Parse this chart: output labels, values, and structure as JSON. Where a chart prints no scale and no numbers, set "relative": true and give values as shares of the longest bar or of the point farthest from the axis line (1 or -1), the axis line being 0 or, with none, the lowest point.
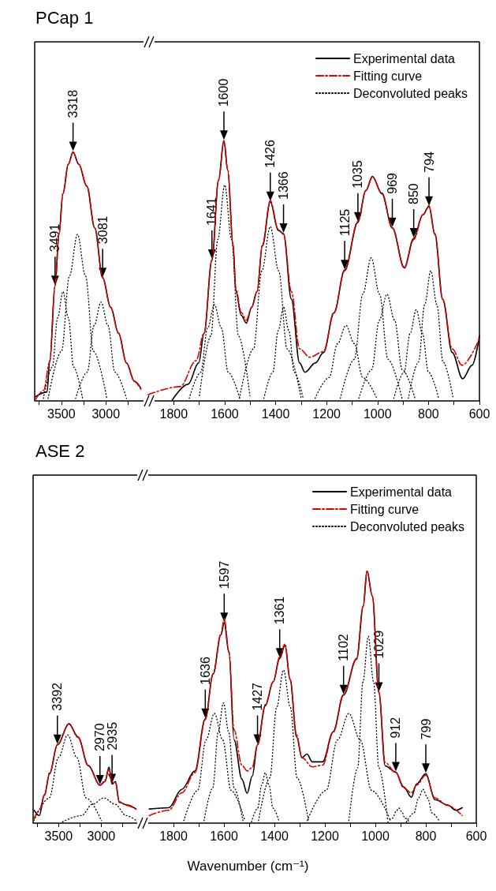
{
  "chart_data": [
    {
      "type": "line",
      "title": "PCap 1",
      "relative": true,
      "xlim": [
        3800,
        2550
      ],
      "xticks": [
        {
          "value": 3750,
          "label": null
        },
        3500,
        {
          "value": 3250,
          "label": null
        },
        3000,
        {
          "value": 2750,
          "label": null
        }
      ],
      "series": [
        {
          "color": "#000000",
          "line_style": "solid",
          "x": [
            3795,
            3661,
            3631,
            3571,
            3527,
            3482,
            3422,
            3369,
            3304,
            3214,
            3125,
            3036,
            2946,
            2857,
            2768,
            2679,
            2607
          ],
          "values": [
            0.016,
            0.036,
            0.162,
            0.462,
            0.672,
            0.832,
            0.95,
            1.0,
            0.95,
            0.863,
            0.695,
            0.494,
            0.376,
            0.271,
            0.153,
            0.079,
            0.051
          ]
        },
        {
          "color": "#e00000",
          "line_style": "dashed",
          "x": [
            3800,
            3700,
            3631,
            3571,
            3527,
            3482,
            3422,
            3369,
            3304,
            3214,
            3125,
            3036,
            2946,
            2857,
            2768,
            2679,
            2607
          ],
          "values": [
            0.0,
            0.042,
            0.157,
            0.46,
            0.669,
            0.836,
            0.951,
            0.998,
            0.951,
            0.862,
            0.695,
            0.496,
            0.376,
            0.272,
            0.152,
            0.078,
            0.047
          ]
        },
        {
          "color": "#000000",
          "line_style": "dotted",
          "x": [
            3702,
            3602,
            3542,
            3482,
            3422,
            3362,
            3262
          ],
          "values": [
            0.01,
            0.136,
            0.334,
            0.439,
            0.334,
            0.136,
            0.01
          ]
        },
        {
          "color": "#000000",
          "line_style": "dotted",
          "x": [
            3649,
            3499,
            3409,
            3319,
            3229,
            3139,
            2989
          ],
          "values": [
            0.01,
            0.199,
            0.502,
            0.669,
            0.502,
            0.199,
            0.01
          ]
        },
        {
          "color": "#000000",
          "line_style": "dotted",
          "x": [
            3340,
            3210,
            3132,
            3054,
            2976,
            2898,
            2768
          ],
          "values": [
            0.01,
            0.115,
            0.303,
            0.397,
            0.303,
            0.115,
            0.01
          ]
        }
      ],
      "annotations": [
        {
          "text": "3491",
          "x": 3571,
          "y": 0.462
        },
        {
          "text": "3318",
          "x": 3369,
          "y": 1.0
        },
        {
          "text": "3081",
          "x": 3036,
          "y": 0.494
        }
      ]
    },
    {
      "type": "line",
      "relative": true,
      "legend": "top right",
      "xlim": [
        1900,
        600
      ],
      "xticks": [
        1800,
        {
          "value": 1700,
          "label": null
        },
        1600,
        {
          "value": 1500,
          "label": null
        },
        1400,
        {
          "value": 1300,
          "label": null
        },
        1200,
        {
          "value": 1100,
          "label": null
        },
        1000,
        {
          "value": 900,
          "label": null
        },
        800,
        {
          "value": 700,
          "label": null
        },
        600
      ],
      "series": [
        {
          "name": "Experimental data",
          "color": "#000000",
          "line_style": "solid",
          "x": [
            1806,
            1744,
            1702,
            1681,
            1650,
            1624,
            1603,
            1588,
            1567,
            1556,
            1535,
            1515,
            1494,
            1473,
            1452,
            1421,
            1390,
            1369,
            1338,
            1306,
            1285,
            1244,
            1212,
            1171,
            1129,
            1077,
            1046,
            1020,
            983,
            942,
            895,
            858,
            822,
            798,
            775,
            744,
            707,
            666,
            629,
            600
          ],
          "values": [
            0.003,
            0.064,
            0.146,
            0.259,
            0.543,
            0.848,
            1.0,
            0.887,
            0.595,
            0.421,
            0.329,
            0.299,
            0.36,
            0.421,
            0.595,
            0.765,
            0.656,
            0.643,
            0.39,
            0.146,
            0.11,
            0.146,
            0.186,
            0.338,
            0.503,
            0.686,
            0.808,
            0.863,
            0.796,
            0.665,
            0.512,
            0.625,
            0.716,
            0.747,
            0.643,
            0.39,
            0.186,
            0.085,
            0.137,
            0.25
          ]
        },
        {
          "name": "Fitting curve",
          "color": "#e00000",
          "line_style": "dashed",
          "x": [
            1900,
            1775,
            1712,
            1681,
            1650,
            1624,
            1603,
            1588,
            1567,
            1556,
            1535,
            1515,
            1494,
            1473,
            1452,
            1421,
            1390,
            1369,
            1338,
            1306,
            1266,
            1212,
            1171,
            1129,
            1077,
            1046,
            1020,
            983,
            942,
            895,
            858,
            822,
            798,
            775,
            744,
            707,
            668,
            600
          ],
          "values": [
            0.024,
            0.055,
            0.155,
            0.26,
            0.54,
            0.85,
            1.0,
            0.89,
            0.6,
            0.43,
            0.34,
            0.31,
            0.36,
            0.42,
            0.6,
            0.77,
            0.66,
            0.64,
            0.42,
            0.2,
            0.168,
            0.19,
            0.34,
            0.5,
            0.69,
            0.81,
            0.86,
            0.8,
            0.665,
            0.51,
            0.62,
            0.715,
            0.75,
            0.64,
            0.39,
            0.2,
            0.137,
            0.24
          ]
        },
        {
          "name": "Deconvoluted peaks",
          "color": "#000000",
          "line_style": "dotted",
          "x": [
            1739,
            1694,
            1667,
            1640,
            1613,
            1586,
            1541
          ],
          "values": [
            0.01,
            0.11,
            0.28,
            0.37,
            0.28,
            0.11,
            0.01
          ]
        },
        {
          "color": "#000000",
          "line_style": "dotted",
          "x": [
            1699,
            1654,
            1627,
            1600,
            1573,
            1546,
            1501
          ],
          "values": [
            0.02,
            0.25,
            0.62,
            0.83,
            0.62,
            0.25,
            0.02
          ]
        },
        {
          "color": "#000000",
          "line_style": "dotted",
          "x": [
            1542,
            1487,
            1454,
            1421,
            1388,
            1355,
            1300
          ],
          "values": [
            0.01,
            0.2,
            0.5,
            0.67,
            0.5,
            0.2,
            0.01
          ]
        },
        {
          "color": "#000000",
          "line_style": "dotted",
          "x": [
            1446,
            1411,
            1390,
            1369,
            1348,
            1327,
            1292
          ],
          "values": [
            0.01,
            0.11,
            0.27,
            0.36,
            0.27,
            0.11,
            0.01
          ]
        },
        {
          "color": "#000000",
          "line_style": "dotted",
          "x": [
            1245,
            1190,
            1157,
            1124,
            1091,
            1058,
            1003
          ],
          "values": [
            0.01,
            0.09,
            0.22,
            0.29,
            0.22,
            0.09,
            0.01
          ]
        },
        {
          "color": "#000000",
          "line_style": "dotted",
          "x": [
            1146,
            1091,
            1058,
            1025,
            992,
            959,
            904
          ],
          "values": [
            0.01,
            0.16,
            0.41,
            0.55,
            0.41,
            0.16,
            0.01
          ]
        },
        {
          "color": "#000000",
          "line_style": "dotted",
          "x": [
            1073,
            1023,
            993,
            963,
            933,
            903,
            853
          ],
          "values": [
            0.01,
            0.12,
            0.31,
            0.41,
            0.31,
            0.12,
            0.01
          ]
        },
        {
          "color": "#000000",
          "line_style": "dotted",
          "x": [
            936,
            896,
            872,
            848,
            824,
            800,
            760
          ],
          "values": [
            0.01,
            0.11,
            0.26,
            0.35,
            0.26,
            0.11,
            0.01
          ]
        },
        {
          "color": "#000000",
          "line_style": "dotted",
          "x": [
            879,
            839,
            815,
            791,
            767,
            743,
            703
          ],
          "values": [
            0.01,
            0.15,
            0.37,
            0.5,
            0.37,
            0.15,
            0.01
          ]
        }
      ],
      "annotations": [
        {
          "text": "1641",
          "x": 1650,
          "y": 0.543
        },
        {
          "text": "1600",
          "x": 1603,
          "y": 1.0
        },
        {
          "text": "1426",
          "x": 1421,
          "y": 0.765
        },
        {
          "text": "1366",
          "x": 1369,
          "y": 0.643
        },
        {
          "text": "1125",
          "x": 1129,
          "y": 0.503
        },
        {
          "text": "1035",
          "x": 1077,
          "y": 0.686
        },
        {
          "text": "969",
          "x": 942,
          "y": 0.665
        },
        {
          "text": "850",
          "x": 858,
          "y": 0.625
        },
        {
          "text": "794",
          "x": 798,
          "y": 0.747
        }
      ]
    },
    {
      "type": "line",
      "title": "ASE 2",
      "relative": true,
      "xlim": [
        3800,
        2550
      ],
      "xticks": [
        {
          "value": 3750,
          "label": null
        },
        3500,
        {
          "value": 3250,
          "label": null
        },
        3000,
        {
          "value": 2750,
          "label": null
        }
      ],
      "series": [
        {
          "color": "#000000",
          "line_style": "solid",
          "x": [
            3788,
            3727,
            3667,
            3606,
            3515,
            3379,
            3273,
            3152,
            3015,
            2955,
            2909,
            2873,
            2833,
            2788,
            2697,
            2591
          ],
          "values": [
            0.129,
            0.076,
            0.287,
            0.497,
            0.789,
            1.0,
            0.868,
            0.579,
            0.381,
            0.419,
            0.563,
            0.393,
            0.419,
            0.208,
            0.183,
            0.142
          ]
        },
        {
          "color": "#e00000",
          "line_style": "dashed",
          "x": [
            3800,
            3727,
            3667,
            3606,
            3515,
            3379,
            3273,
            3152,
            3015,
            2955,
            2909,
            2873,
            2833,
            2788,
            2697,
            2591
          ],
          "values": [
            0.025,
            0.127,
            0.279,
            0.508,
            0.787,
            1.0,
            0.863,
            0.579,
            0.381,
            0.431,
            0.546,
            0.406,
            0.406,
            0.216,
            0.178,
            0.14
          ]
        },
        {
          "color": "#000000",
          "line_style": "dotted",
          "x": [
            3790,
            3610,
            3502,
            3394,
            3286,
            3178,
            2998
          ],
          "values": [
            0.025,
            0.254,
            0.66,
            0.888,
            0.66,
            0.254,
            0.025
          ]
        },
        {
          "color": "#000000",
          "line_style": "dotted",
          "x": [
            3454,
            3234,
            3102,
            2970,
            2838,
            2706,
            2570
          ],
          "values": [
            0.013,
            0.076,
            0.19,
            0.254,
            0.19,
            0.076,
            0.013
          ]
        }
      ],
      "annotations": [
        {
          "text": "3392",
          "x": 3515,
          "y": 0.789
        },
        {
          "text": "2970",
          "x": 3015,
          "y": 0.381
        },
        {
          "text": "2935",
          "x": 2873,
          "y": 0.393
        }
      ]
    },
    {
      "type": "line",
      "relative": true,
      "legend": "top right",
      "xlabel": "Wavenumber (cm⁻¹)",
      "xlim": [
        1900,
        600
      ],
      "xticks": [
        1800,
        {
          "value": 1700,
          "label": null
        },
        1600,
        {
          "value": 1500,
          "label": null
        },
        1400,
        {
          "value": 1300,
          "label": null
        },
        1200,
        {
          "value": 1100,
          "label": null
        },
        1000,
        {
          "value": 900,
          "label": null
        },
        800,
        {
          "value": 700,
          "label": null
        },
        600
      ],
      "series": [
        {
          "name": "Experimental data",
          "color": "#000000",
          "line_style": "solid",
          "x": [
            1896,
            1819,
            1767,
            1715,
            1674,
            1643,
            1612,
            1599,
            1580,
            1560,
            1529,
            1508,
            1488,
            1467,
            1436,
            1405,
            1379,
            1358,
            1338,
            1312,
            1291,
            1271,
            1250,
            1209,
            1167,
            1126,
            1074,
            1048,
            1033,
            1012,
            986,
            961,
            919,
            888,
            857,
            837,
            800,
            764,
            713,
            681,
            656
          ],
          "values": [
            0.056,
            0.061,
            0.134,
            0.207,
            0.414,
            0.592,
            0.747,
            0.794,
            0.675,
            0.331,
            0.175,
            0.118,
            0.186,
            0.311,
            0.466,
            0.56,
            0.653,
            0.705,
            0.57,
            0.342,
            0.259,
            0.274,
            0.243,
            0.243,
            0.362,
            0.508,
            0.653,
            0.861,
            1.0,
            0.901,
            0.518,
            0.227,
            0.202,
            0.144,
            0.103,
            0.155,
            0.196,
            0.093,
            0.072,
            0.051,
            0.061
          ]
        },
        {
          "name": "Fitting curve",
          "color": "#e00000",
          "line_style": "dashed",
          "x": [
            1896,
            1819,
            1767,
            1715,
            1674,
            1643,
            1612,
            1599,
            1580,
            1560,
            1529,
            1508,
            1488,
            1467,
            1436,
            1405,
            1379,
            1358,
            1338,
            1312,
            1291,
            1250,
            1209,
            1167,
            1126,
            1074,
            1048,
            1033,
            1012,
            986,
            961,
            919,
            888,
            857,
            837,
            800,
            764,
            713,
            656
          ],
          "values": [
            0.03,
            0.051,
            0.12,
            0.2,
            0.41,
            0.59,
            0.75,
            0.81,
            0.68,
            0.37,
            0.23,
            0.207,
            0.22,
            0.31,
            0.47,
            0.56,
            0.66,
            0.71,
            0.57,
            0.35,
            0.26,
            0.223,
            0.23,
            0.36,
            0.51,
            0.65,
            0.86,
            1.0,
            0.9,
            0.52,
            0.24,
            0.2,
            0.14,
            0.12,
            0.15,
            0.19,
            0.1,
            0.07,
            0.03
          ]
        },
        {
          "name": "Deconvoluted peaks",
          "color": "#000000",
          "line_style": "dotted",
          "x": [
            1759,
            1704,
            1671,
            1638,
            1605,
            1572,
            1517
          ],
          "values": [
            0.01,
            0.13,
            0.33,
            0.435,
            0.33,
            0.13,
            0.01
          ]
        },
        {
          "color": "#000000",
          "line_style": "dotted",
          "x": [
            1679,
            1644,
            1623,
            1602,
            1581,
            1560,
            1525
          ],
          "values": [
            0.01,
            0.14,
            0.36,
            0.477,
            0.36,
            0.14,
            0.01
          ]
        },
        {
          "color": "#000000",
          "line_style": "dotted",
          "x": [
            1491,
            1466,
            1451,
            1436,
            1421,
            1406,
            1381
          ],
          "values": [
            0.005,
            0.06,
            0.15,
            0.2,
            0.15,
            0.06,
            0.005
          ]
        },
        {
          "color": "#000000",
          "line_style": "dotted",
          "x": [
            1463,
            1418,
            1391,
            1364,
            1337,
            1310,
            1265
          ],
          "values": [
            0.01,
            0.18,
            0.46,
            0.607,
            0.46,
            0.18,
            0.01
          ]
        },
        {
          "color": "#000000",
          "line_style": "dotted",
          "x": [
            1270,
            1195,
            1150,
            1105,
            1060,
            1015,
            940
          ],
          "values": [
            0.01,
            0.13,
            0.33,
            0.435,
            0.33,
            0.13,
            0.01
          ]
        },
        {
          "color": "#000000",
          "line_style": "dotted",
          "x": [
            1105,
            1070,
            1049,
            1028,
            1007,
            986,
            951
          ],
          "values": [
            0.01,
            0.22,
            0.56,
            0.741,
            0.56,
            0.22,
            0.01
          ]
        },
        {
          "color": "#000000",
          "line_style": "dotted",
          "x": [
            951,
            931,
            919,
            907,
            895,
            883,
            863
          ],
          "values": [
            0.003,
            0.02,
            0.045,
            0.06,
            0.045,
            0.02,
            0.003
          ]
        },
        {
          "color": "#000000",
          "line_style": "dotted",
          "x": [
            877,
            847,
            829,
            811,
            793,
            775,
            745
          ],
          "values": [
            0.005,
            0.04,
            0.1,
            0.134,
            0.1,
            0.04,
            0.005
          ]
        }
      ],
      "annotations": [
        {
          "text": "1636",
          "x": 1674,
          "y": 0.414
        },
        {
          "text": "1597",
          "x": 1599,
          "y": 0.794
        },
        {
          "text": "1427",
          "x": 1467,
          "y": 0.311
        },
        {
          "text": "1361",
          "x": 1379,
          "y": 0.653
        },
        {
          "text": "1102",
          "x": 1126,
          "y": 0.508
        },
        {
          "text": "1029",
          "x": 986,
          "y": 0.518
        },
        {
          "text": "912",
          "x": 919,
          "y": 0.202
        },
        {
          "text": "799",
          "x": 800,
          "y": 0.196
        }
      ]
    }
  ]
}
